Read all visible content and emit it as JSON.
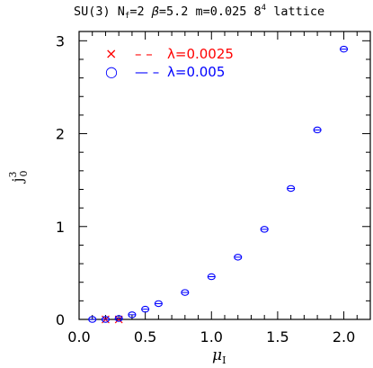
{
  "chart_data": {
    "type": "scatter",
    "title": {
      "text_a": "SU(3) N",
      "sub_a": "f",
      "text_b": "=2 ",
      "beta": "β",
      "text_c": "=5.2 m=0.025 8",
      "sup": "4",
      "text_d": " lattice"
    },
    "xlabel": {
      "main": "μ",
      "sub": "I"
    },
    "ylabel": {
      "main": "j",
      "sub": "0",
      "sup": "3"
    },
    "xlim": [
      0,
      2.2
    ],
    "ylim": [
      0,
      3.1
    ],
    "x_ticks": [
      "0.0",
      "0.5",
      "1.0",
      "1.5",
      "2.0"
    ],
    "y_ticks": [
      "0",
      "1",
      "2",
      "3"
    ],
    "legend": [
      {
        "symbol": "×",
        "line": "– –",
        "label": "λ=0.0025",
        "color": "#ff0000"
      },
      {
        "symbol": "○",
        "line": "— –",
        "label": "λ=0.005",
        "color": "#0000ff"
      }
    ],
    "series": [
      {
        "name": "λ=0.0025",
        "color": "#ff0000",
        "marker": "x",
        "x": [
          0.2,
          0.3
        ],
        "y": [
          0.0,
          0.0
        ]
      },
      {
        "name": "λ=0.005",
        "color": "#0000ff",
        "marker": "o",
        "x": [
          0.1,
          0.2,
          0.3,
          0.4,
          0.5,
          0.6,
          0.8,
          1.0,
          1.2,
          1.4,
          1.6,
          1.8,
          2.0
        ],
        "y": [
          0.0,
          0.0,
          0.01,
          0.05,
          0.11,
          0.17,
          0.29,
          0.46,
          0.67,
          0.97,
          1.41,
          2.04,
          2.91
        ]
      }
    ]
  }
}
